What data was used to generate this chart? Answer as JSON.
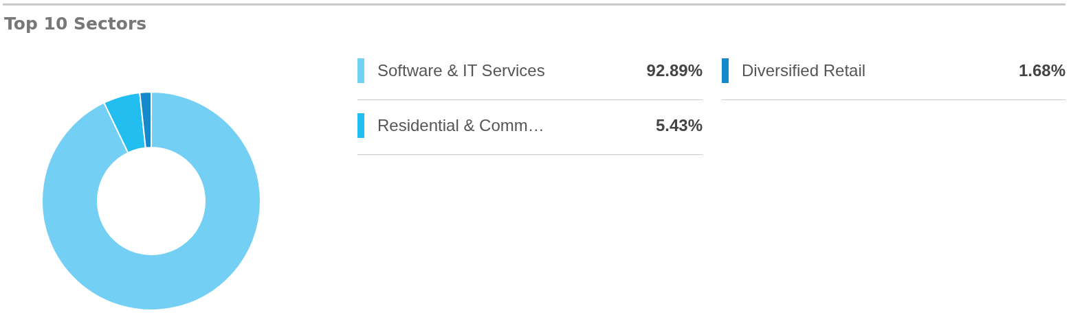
{
  "chart_data": {
    "type": "donut",
    "title": "Top 10 Sectors",
    "categories": [
      "Software & IT Services",
      "Residential & Comm…",
      "Diversified Retail"
    ],
    "values": [
      92.89,
      5.43,
      1.68
    ],
    "colors": [
      "#74cff4",
      "#22bef0",
      "#1589cb"
    ],
    "value_labels": [
      "92.89%",
      "5.43%",
      "1.68%"
    ],
    "legend": "right"
  }
}
